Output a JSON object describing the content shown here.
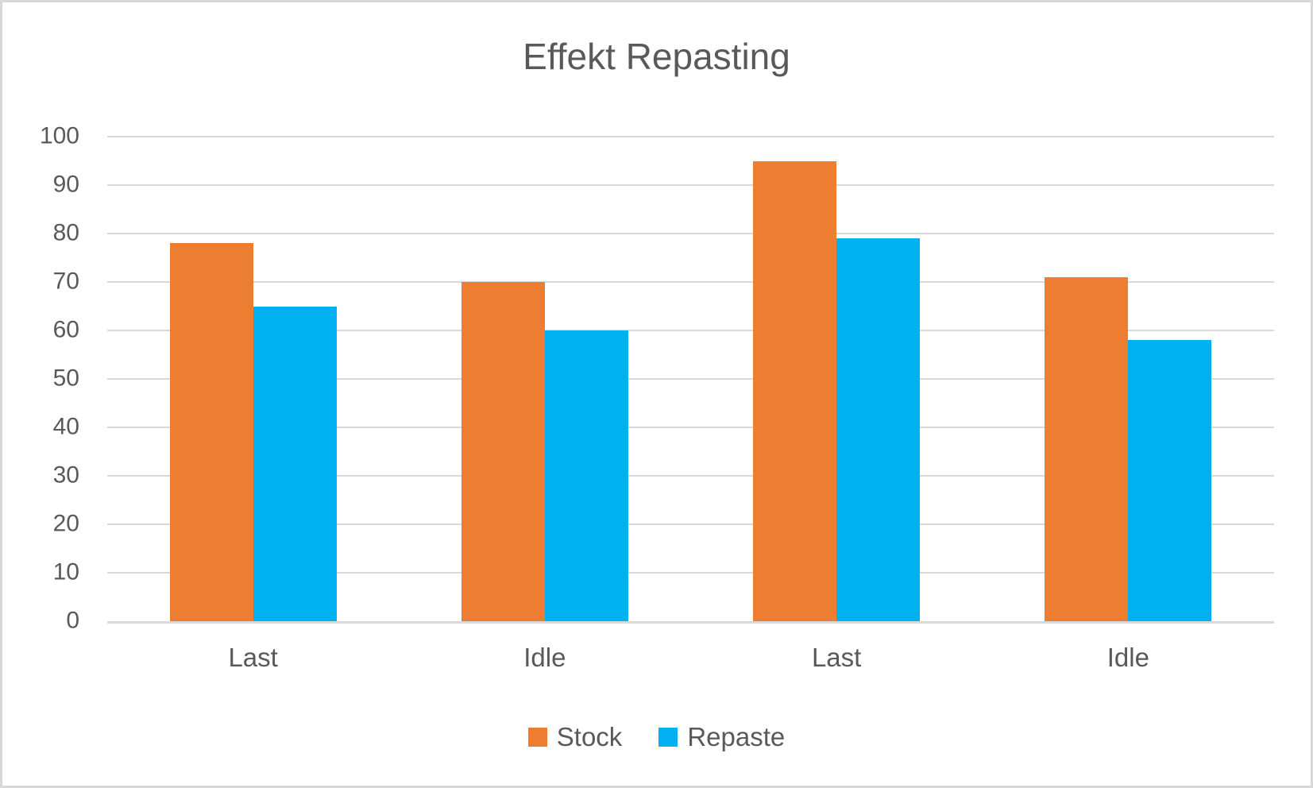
{
  "chart_data": {
    "type": "bar",
    "title": "Effekt Repasting",
    "categories": [
      "Last",
      "Idle",
      "Last",
      "Idle"
    ],
    "series": [
      {
        "name": "Stock",
        "color": "#ED7D31",
        "values": [
          78,
          70,
          95,
          71
        ]
      },
      {
        "name": "Repaste",
        "color": "#00B0F0",
        "values": [
          65,
          60,
          79,
          58
        ]
      }
    ],
    "xlabel": "",
    "ylabel": "",
    "ylim": [
      0,
      100
    ],
    "yticks": [
      0,
      10,
      20,
      30,
      40,
      50,
      60,
      70,
      80,
      90,
      100
    ],
    "grid": true,
    "legend_position": "bottom"
  },
  "colors": {
    "text": "#595959",
    "gridline": "#d9d9d9",
    "frame_border": "#d8d8d8",
    "background": "#ffffff"
  }
}
